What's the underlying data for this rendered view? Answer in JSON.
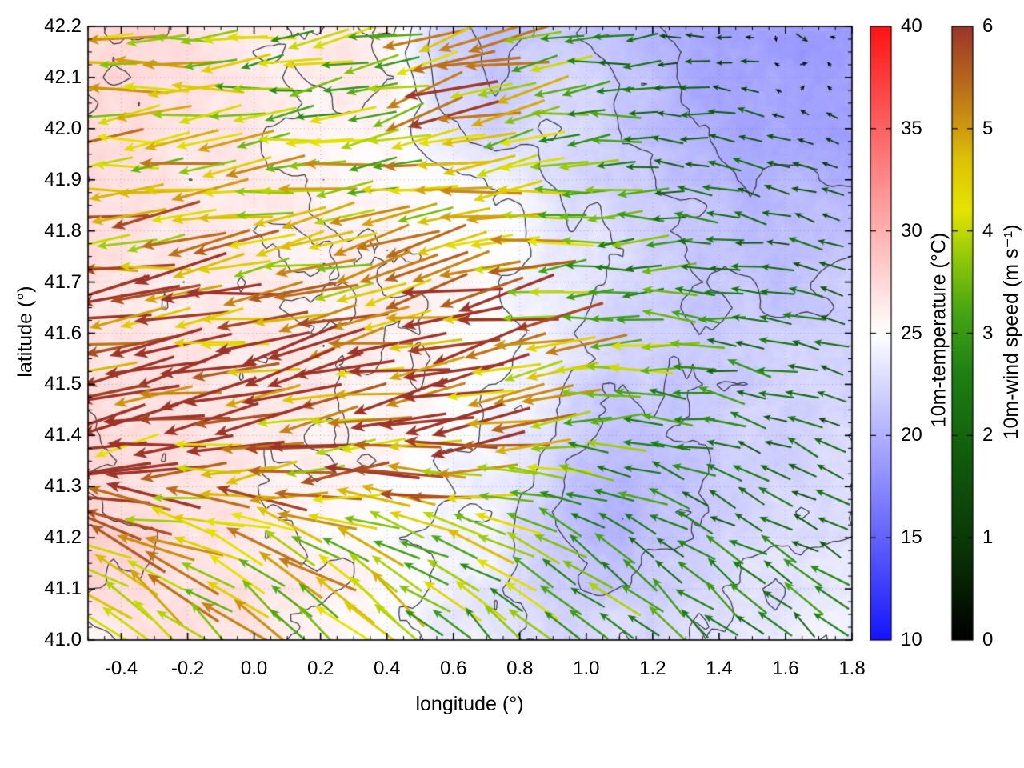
{
  "chart_data": {
    "type": "vector_field_map",
    "title": "",
    "xlabel": "longitude (°)",
    "ylabel": "latitude (°)",
    "xlim": [
      -0.5,
      1.8
    ],
    "ylim": [
      41.0,
      42.2
    ],
    "x_major_ticks": [
      -0.4,
      -0.2,
      0.0,
      0.2,
      0.4,
      0.6,
      0.8,
      1.0,
      1.2,
      1.4,
      1.6,
      1.8
    ],
    "x_minor_step": 0.05,
    "y_major_ticks": [
      41.0,
      41.1,
      41.2,
      41.3,
      41.4,
      41.5,
      41.6,
      41.7,
      41.8,
      41.9,
      42.0,
      42.1,
      42.2
    ],
    "y_minor_step": 0.025,
    "grid": {
      "style": "dotted",
      "at": "major_ticks",
      "color": "#7d7d96"
    },
    "border_color": "#000000",
    "colorbars": [
      {
        "label": "10m-temperature (°C)",
        "min": 10,
        "max": 40,
        "ticks": [
          10,
          15,
          20,
          25,
          30,
          35,
          40
        ],
        "stops": [
          [
            10,
            "#1414ff"
          ],
          [
            25,
            "#ffffff"
          ],
          [
            40,
            "#ff1414"
          ]
        ]
      },
      {
        "label": "10m-wind speed (m s⁻¹)",
        "min": 0,
        "max": 6,
        "ticks": [
          0,
          1,
          2,
          3,
          4,
          5,
          6
        ],
        "stops": [
          [
            0,
            "#000000"
          ],
          [
            0.9,
            "#0a3506"
          ],
          [
            1.8,
            "#115c0c"
          ],
          [
            2.6,
            "#1e8012"
          ],
          [
            3.2,
            "#46a414"
          ],
          [
            3.7,
            "#8cc60a"
          ],
          [
            4.2,
            "#e6e400"
          ],
          [
            4.7,
            "#dcc206"
          ],
          [
            5.0,
            "#cf9a10"
          ],
          [
            5.5,
            "#b4651d"
          ],
          [
            6.0,
            "#9c3528"
          ]
        ]
      }
    ],
    "temperature_field": {
      "units": "°C",
      "lon_range": [
        -0.5,
        1.8
      ],
      "lat_range": [
        41.0,
        42.2
      ],
      "rows_order": "north_to_south",
      "values": [
        [
          27.5,
          27.5,
          27.0,
          26.5,
          26.0,
          26.3,
          25.8,
          22.0,
          21.0,
          21.5,
          21.0,
          20.0,
          19.5,
          19.0,
          18.5,
          18.5
        ],
        [
          27.5,
          27.0,
          26.8,
          26.4,
          26.0,
          26.0,
          25.6,
          22.5,
          21.5,
          23.0,
          22.0,
          21.0,
          19.8,
          19.0,
          19.0,
          18.8
        ],
        [
          27.3,
          27.0,
          26.6,
          26.3,
          26.0,
          25.8,
          25.4,
          23.5,
          22.5,
          23.0,
          22.0,
          21.0,
          20.0,
          19.5,
          19.5,
          19.0
        ],
        [
          27.0,
          26.8,
          26.5,
          26.3,
          26.0,
          25.8,
          25.5,
          25.0,
          24.3,
          23.5,
          22.5,
          21.5,
          21.0,
          20.5,
          20.5,
          20.5
        ],
        [
          27.0,
          26.6,
          26.5,
          26.3,
          26.2,
          26.0,
          25.8,
          25.4,
          25.0,
          24.0,
          23.0,
          22.0,
          21.5,
          21.0,
          21.0,
          21.3
        ],
        [
          26.6,
          26.4,
          26.5,
          26.5,
          26.3,
          26.0,
          26.0,
          25.5,
          25.0,
          24.0,
          23.0,
          22.0,
          21.5,
          21.5,
          21.5,
          21.8
        ],
        [
          27.0,
          26.8,
          26.5,
          26.5,
          26.3,
          26.2,
          26.0,
          25.5,
          25.0,
          24.0,
          22.5,
          22.0,
          21.8,
          22.0,
          22.0,
          22.0
        ],
        [
          27.5,
          27.0,
          26.8,
          26.5,
          26.3,
          26.0,
          25.8,
          25.0,
          24.5,
          23.5,
          21.5,
          21.5,
          21.5,
          22.0,
          22.3,
          22.5
        ],
        [
          27.5,
          27.2,
          27.0,
          26.5,
          26.0,
          25.8,
          25.5,
          24.5,
          24.0,
          22.5,
          20.5,
          20.8,
          21.5,
          22.0,
          22.5,
          23.0
        ],
        [
          27.8,
          27.5,
          27.0,
          26.5,
          26.0,
          25.5,
          25.0,
          24.5,
          24.0,
          22.0,
          20.2,
          20.8,
          22.0,
          22.5,
          23.0,
          23.0
        ],
        [
          28.0,
          27.5,
          27.0,
          26.8,
          26.5,
          26.0,
          25.0,
          24.0,
          23.5,
          22.0,
          21.5,
          22.0,
          22.5,
          23.0,
          23.5,
          23.5
        ],
        [
          25.5,
          27.3,
          27.0,
          26.5,
          26.0,
          25.5,
          24.5,
          24.0,
          23.5,
          22.5,
          22.5,
          23.0,
          23.5,
          23.5,
          24.0,
          24.0
        ]
      ]
    },
    "wind_field": {
      "units": "m/s",
      "lon_range": [
        -0.5,
        1.8
      ],
      "lat_range": [
        41.0,
        42.2
      ],
      "rows_order": "north_to_south",
      "u": [
        [
          -4.0,
          -4.0,
          -3.8,
          -3.5,
          -3.5,
          -3.2,
          -3.5,
          -4.5,
          -5.0,
          -3.0,
          -2.5,
          -1.5,
          -1.2,
          -0.5,
          0.8,
          -0.6
        ],
        [
          -4.2,
          -4.0,
          -3.8,
          -3.6,
          -3.4,
          -3.2,
          -3.6,
          -5.5,
          -4.5,
          -3.5,
          -2.8,
          -2.0,
          -1.5,
          -1.2,
          0.5,
          -0.8
        ],
        [
          -4.3,
          -4.1,
          -4.0,
          -3.8,
          -3.6,
          -3.4,
          -3.8,
          -4.5,
          -4.0,
          -3.2,
          -2.8,
          -2.2,
          -1.8,
          -1.5,
          -1.2,
          -1.0
        ],
        [
          -4.5,
          -4.3,
          -4.2,
          -4.0,
          -4.4,
          -4.5,
          -4.0,
          -4.2,
          -3.8,
          -3.4,
          -3.0,
          -2.5,
          -2.0,
          -1.8,
          -1.5,
          -1.3
        ],
        [
          -4.8,
          -4.6,
          -4.5,
          -4.5,
          -4.3,
          -4.2,
          -4.5,
          -5.0,
          -4.8,
          -4.0,
          -3.2,
          -2.8,
          -2.4,
          -2.0,
          -1.8,
          -1.5
        ],
        [
          -5.5,
          -5.5,
          -5.3,
          -5.2,
          -5.0,
          -5.0,
          -5.3,
          -5.8,
          -5.5,
          -4.5,
          -3.8,
          -3.0,
          -2.6,
          -2.2,
          -2.0,
          -1.8
        ],
        [
          -5.8,
          -5.8,
          -5.6,
          -5.5,
          -5.3,
          -5.2,
          -5.5,
          -5.8,
          -5.6,
          -4.8,
          -4.0,
          -3.2,
          -2.7,
          -2.3,
          -2.0,
          -1.8
        ],
        [
          -5.6,
          -5.6,
          -5.5,
          -5.4,
          -5.2,
          -5.0,
          -5.2,
          -5.5,
          -5.2,
          -4.2,
          -3.4,
          -2.8,
          -2.4,
          -2.0,
          -1.8,
          -1.6
        ],
        [
          -5.4,
          -5.4,
          -5.2,
          -5.0,
          -4.8,
          -4.6,
          -4.8,
          -5.0,
          -4.6,
          -3.6,
          -2.8,
          -2.4,
          -2.2,
          -2.0,
          -1.8,
          -1.6
        ],
        [
          -4.5,
          -4.5,
          -4.4,
          -4.2,
          -4.0,
          -3.8,
          -3.8,
          -3.8,
          -3.5,
          -2.8,
          -2.4,
          -2.2,
          -2.0,
          -1.9,
          -1.8,
          -1.6
        ],
        [
          -3.8,
          -3.8,
          -3.6,
          -3.5,
          -3.4,
          -3.2,
          -3.2,
          -3.0,
          -2.8,
          -2.5,
          -2.4,
          -2.3,
          -2.2,
          -2.1,
          -2.0,
          -1.9
        ],
        [
          -3.0,
          -3.2,
          -3.0,
          -2.9,
          -2.8,
          -2.6,
          -2.4,
          -2.2,
          -2.1,
          -2.2,
          -2.1,
          -2.0,
          -1.9,
          -1.8,
          -1.7,
          -1.6
        ]
      ],
      "v": [
        [
          0.0,
          -0.3,
          0.0,
          -0.3,
          -0.5,
          -0.5,
          -0.8,
          -1.0,
          -1.5,
          -0.5,
          -0.3,
          0.0,
          0.2,
          0.0,
          -0.5,
          0.3
        ],
        [
          -0.3,
          -0.3,
          -0.4,
          -0.4,
          -0.5,
          -0.6,
          -1.0,
          -1.5,
          -1.0,
          -0.8,
          -0.4,
          -0.2,
          0.0,
          0.2,
          0.3,
          0.2
        ],
        [
          -0.3,
          -0.4,
          -0.4,
          -0.5,
          -0.5,
          -0.6,
          -0.8,
          -1.0,
          -0.8,
          -0.5,
          -0.3,
          0.0,
          0.2,
          0.3,
          0.3,
          0.3
        ],
        [
          -0.4,
          -0.5,
          -0.5,
          -0.5,
          -0.6,
          -0.6,
          -0.7,
          -0.8,
          -0.6,
          -0.4,
          -0.2,
          0.0,
          0.2,
          0.3,
          0.4,
          0.4
        ],
        [
          -0.5,
          -0.6,
          -0.6,
          -0.7,
          -0.7,
          -0.8,
          -0.9,
          -1.0,
          -0.9,
          -0.6,
          -0.3,
          0.0,
          0.2,
          0.4,
          0.4,
          0.5
        ],
        [
          -0.8,
          -0.8,
          -0.9,
          -0.9,
          -1.0,
          -1.0,
          -1.1,
          -1.2,
          -1.0,
          -0.8,
          -0.4,
          0.0,
          0.2,
          0.4,
          0.5,
          0.5
        ],
        [
          -1.0,
          -1.0,
          -1.0,
          -1.0,
          -1.1,
          -1.1,
          -1.2,
          -1.2,
          -1.1,
          -0.8,
          -0.4,
          -0.1,
          0.2,
          0.4,
          0.5,
          0.6
        ],
        [
          -1.0,
          -1.0,
          -1.0,
          -1.0,
          -1.0,
          -1.0,
          -1.1,
          -1.1,
          -1.0,
          -0.7,
          -0.2,
          0.2,
          0.4,
          0.5,
          0.6,
          0.6
        ],
        [
          -0.6,
          -0.6,
          -0.5,
          -0.5,
          -0.4,
          -0.3,
          -0.3,
          -0.2,
          0.0,
          0.3,
          0.6,
          0.8,
          0.8,
          0.8,
          0.8,
          0.8
        ],
        [
          1.5,
          1.5,
          1.4,
          1.4,
          1.5,
          1.5,
          1.6,
          1.6,
          1.5,
          1.4,
          1.2,
          1.2,
          1.1,
          1.0,
          1.0,
          0.9
        ],
        [
          2.5,
          2.5,
          2.4,
          2.4,
          2.3,
          2.3,
          2.4,
          2.2,
          2.0,
          2.0,
          1.9,
          1.8,
          1.7,
          1.6,
          1.5,
          1.4
        ],
        [
          3.0,
          3.0,
          2.9,
          2.8,
          2.8,
          2.7,
          2.6,
          2.4,
          2.2,
          2.2,
          2.1,
          2.0,
          1.9,
          1.8,
          1.7,
          1.6
        ]
      ]
    },
    "contours": {
      "variable": "temperature",
      "levels": [
        20,
        21.5,
        23,
        24.5,
        26,
        27.5
      ],
      "color": "#3c3c44"
    }
  }
}
